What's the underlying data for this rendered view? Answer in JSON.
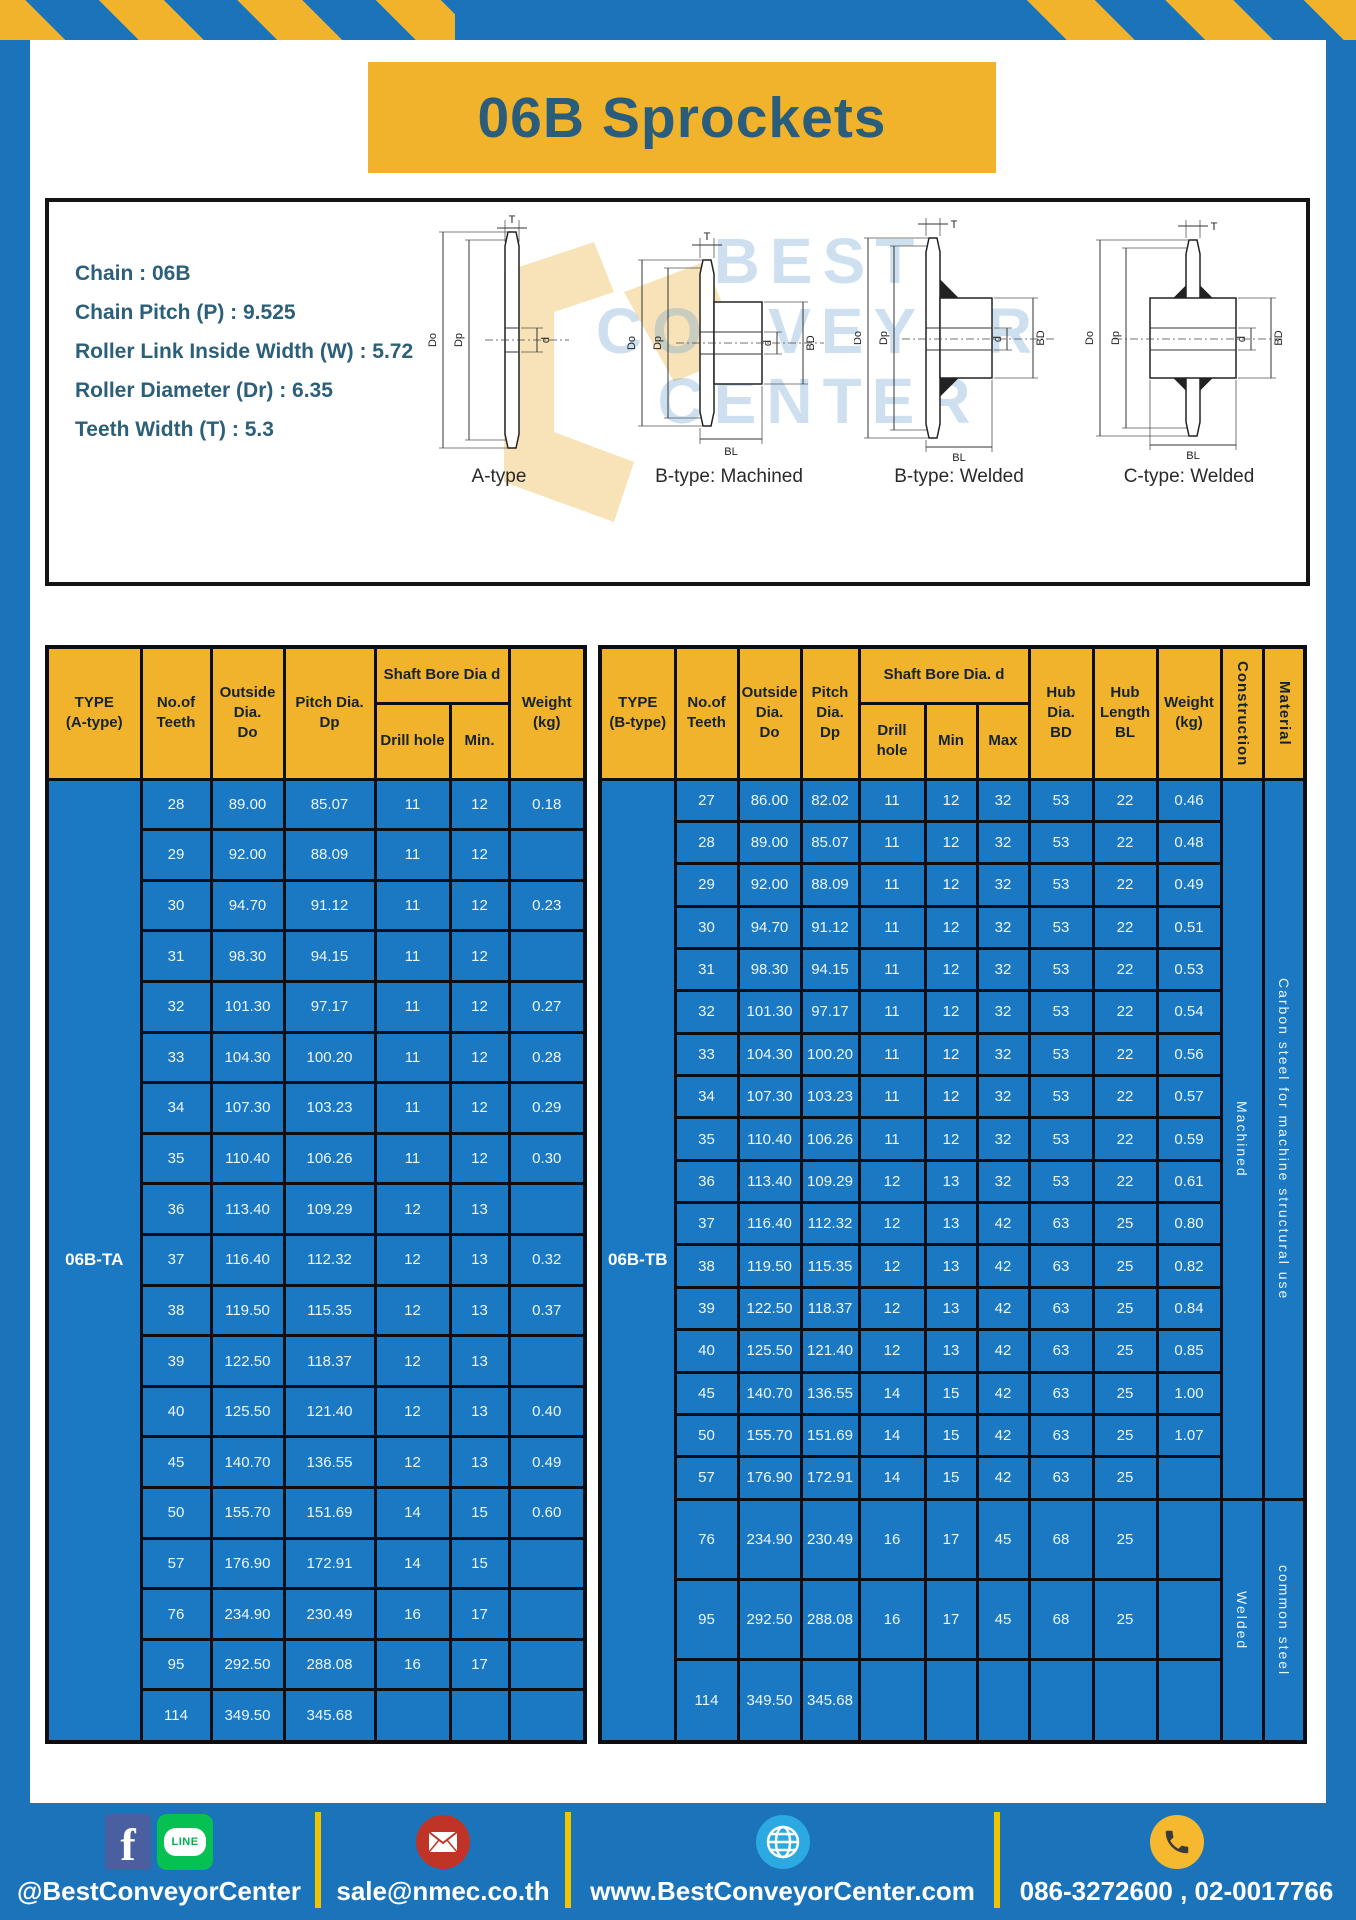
{
  "page": {
    "title": "06B Sprockets"
  },
  "colors": {
    "background_blue": "#1b74ba",
    "accent_yellow": "#f0b32b",
    "table_cell_blue": "#1b78c2",
    "title_teal": "#2a5d7c",
    "grid_black": "#0b0f13"
  },
  "specs": {
    "lines": [
      "Chain  : 06B",
      "Chain Pitch (P)  :  9.525",
      "Roller Link Inside Width (W)  :  5.72",
      "Roller Diameter (Dr)  : 6.35",
      "Teeth Width (T)  :  5.3"
    ]
  },
  "watermark": {
    "line1": "BEST",
    "line2": "CONVEYOR",
    "line3": "CENTER"
  },
  "dim_labels": {
    "t": "T",
    "do": "Do",
    "dp": "Dp",
    "d": "d",
    "bd": "BD",
    "bl": "BL"
  },
  "diagrams": [
    {
      "caption": "A-type"
    },
    {
      "caption": "B-type: Machined"
    },
    {
      "caption": "B-type: Welded"
    },
    {
      "caption": "C-type: Welded"
    }
  ],
  "tables": {
    "a": {
      "headers": {
        "type": "TYPE\n(A-type)",
        "teeth": "No.of\nTeeth",
        "outside": "Outside\nDia.\nDo",
        "pitch": "Pitch Dia.\nDp",
        "shaft_bore": "Shaft Bore Dia d",
        "drill": "Drill hole",
        "min": "Min.",
        "weight": "Weight\n(kg)"
      },
      "type_label": "06B-TA",
      "rows": [
        [
          "28",
          "89.00",
          "85.07",
          "11",
          "12",
          "0.18"
        ],
        [
          "29",
          "92.00",
          "88.09",
          "11",
          "12",
          ""
        ],
        [
          "30",
          "94.70",
          "91.12",
          "11",
          "12",
          "0.23"
        ],
        [
          "31",
          "98.30",
          "94.15",
          "11",
          "12",
          ""
        ],
        [
          "32",
          "101.30",
          "97.17",
          "11",
          "12",
          "0.27"
        ],
        [
          "33",
          "104.30",
          "100.20",
          "11",
          "12",
          "0.28"
        ],
        [
          "34",
          "107.30",
          "103.23",
          "11",
          "12",
          "0.29"
        ],
        [
          "35",
          "110.40",
          "106.26",
          "11",
          "12",
          "0.30"
        ],
        [
          "36",
          "113.40",
          "109.29",
          "12",
          "13",
          ""
        ],
        [
          "37",
          "116.40",
          "112.32",
          "12",
          "13",
          "0.32"
        ],
        [
          "38",
          "119.50",
          "115.35",
          "12",
          "13",
          "0.37"
        ],
        [
          "39",
          "122.50",
          "118.37",
          "12",
          "13",
          ""
        ],
        [
          "40",
          "125.50",
          "121.40",
          "12",
          "13",
          "0.40"
        ],
        [
          "45",
          "140.70",
          "136.55",
          "12",
          "13",
          "0.49"
        ],
        [
          "50",
          "155.70",
          "151.69",
          "14",
          "15",
          "0.60"
        ],
        [
          "57",
          "176.90",
          "172.91",
          "14",
          "15",
          ""
        ],
        [
          "76",
          "234.90",
          "230.49",
          "16",
          "17",
          ""
        ],
        [
          "95",
          "292.50",
          "288.08",
          "16",
          "17",
          ""
        ],
        [
          "114",
          "349.50",
          "345.68",
          "",
          "",
          ""
        ]
      ]
    },
    "b": {
      "headers": {
        "type": "TYPE\n(B-type)",
        "teeth": "No.of\nTeeth",
        "outside": "Outside\nDia.\nDo",
        "pitch": "Pitch\nDia.\nDp",
        "shaft_bore": "Shaft Bore Dia. d",
        "drill": "Drill hole",
        "min": "Min",
        "max": "Max",
        "hub_dia": "Hub\nDia.\nBD",
        "hub_len": "Hub\nLength\nBL",
        "weight": "Weight\n(kg)",
        "construction": "Construction",
        "material": "Material"
      },
      "type_label": "06B-TB",
      "construction_spans": [
        {
          "label": "Machined",
          "rows": 17
        },
        {
          "label": "Welded",
          "rows": 3
        }
      ],
      "material_spans": [
        {
          "label": "Carbon steel for machine structural use",
          "rows": 17
        },
        {
          "label": "common steel",
          "rows": 3
        }
      ],
      "rows": [
        [
          "27",
          "86.00",
          "82.02",
          "11",
          "12",
          "32",
          "53",
          "22",
          "0.46"
        ],
        [
          "28",
          "89.00",
          "85.07",
          "11",
          "12",
          "32",
          "53",
          "22",
          "0.48"
        ],
        [
          "29",
          "92.00",
          "88.09",
          "11",
          "12",
          "32",
          "53",
          "22",
          "0.49"
        ],
        [
          "30",
          "94.70",
          "91.12",
          "11",
          "12",
          "32",
          "53",
          "22",
          "0.51"
        ],
        [
          "31",
          "98.30",
          "94.15",
          "11",
          "12",
          "32",
          "53",
          "22",
          "0.53"
        ],
        [
          "32",
          "101.30",
          "97.17",
          "11",
          "12",
          "32",
          "53",
          "22",
          "0.54"
        ],
        [
          "33",
          "104.30",
          "100.20",
          "11",
          "12",
          "32",
          "53",
          "22",
          "0.56"
        ],
        [
          "34",
          "107.30",
          "103.23",
          "11",
          "12",
          "32",
          "53",
          "22",
          "0.57"
        ],
        [
          "35",
          "110.40",
          "106.26",
          "11",
          "12",
          "32",
          "53",
          "22",
          "0.59"
        ],
        [
          "36",
          "113.40",
          "109.29",
          "12",
          "13",
          "32",
          "53",
          "22",
          "0.61"
        ],
        [
          "37",
          "116.40",
          "112.32",
          "12",
          "13",
          "42",
          "63",
          "25",
          "0.80"
        ],
        [
          "38",
          "119.50",
          "115.35",
          "12",
          "13",
          "42",
          "63",
          "25",
          "0.82"
        ],
        [
          "39",
          "122.50",
          "118.37",
          "12",
          "13",
          "42",
          "63",
          "25",
          "0.84"
        ],
        [
          "40",
          "125.50",
          "121.40",
          "12",
          "13",
          "42",
          "63",
          "25",
          "0.85"
        ],
        [
          "45",
          "140.70",
          "136.55",
          "14",
          "15",
          "42",
          "63",
          "25",
          "1.00"
        ],
        [
          "50",
          "155.70",
          "151.69",
          "14",
          "15",
          "42",
          "63",
          "25",
          "1.07"
        ],
        [
          "57",
          "176.90",
          "172.91",
          "14",
          "15",
          "42",
          "63",
          "25",
          ""
        ],
        [
          "76",
          "234.90",
          "230.49",
          "16",
          "17",
          "45",
          "68",
          "25",
          ""
        ],
        [
          "95",
          "292.50",
          "288.08",
          "16",
          "17",
          "45",
          "68",
          "25",
          ""
        ],
        [
          "114",
          "349.50",
          "345.68",
          "",
          "",
          "",
          "",
          "",
          ""
        ]
      ]
    }
  },
  "footer": {
    "social_label": "@BestConveyorCenter",
    "line_text": "LINE",
    "fb_letter": "f",
    "email": "sale@nmec.co.th",
    "website": "www.BestConveyorCenter.com",
    "phones": "086-3272600 , 02-0017766"
  }
}
